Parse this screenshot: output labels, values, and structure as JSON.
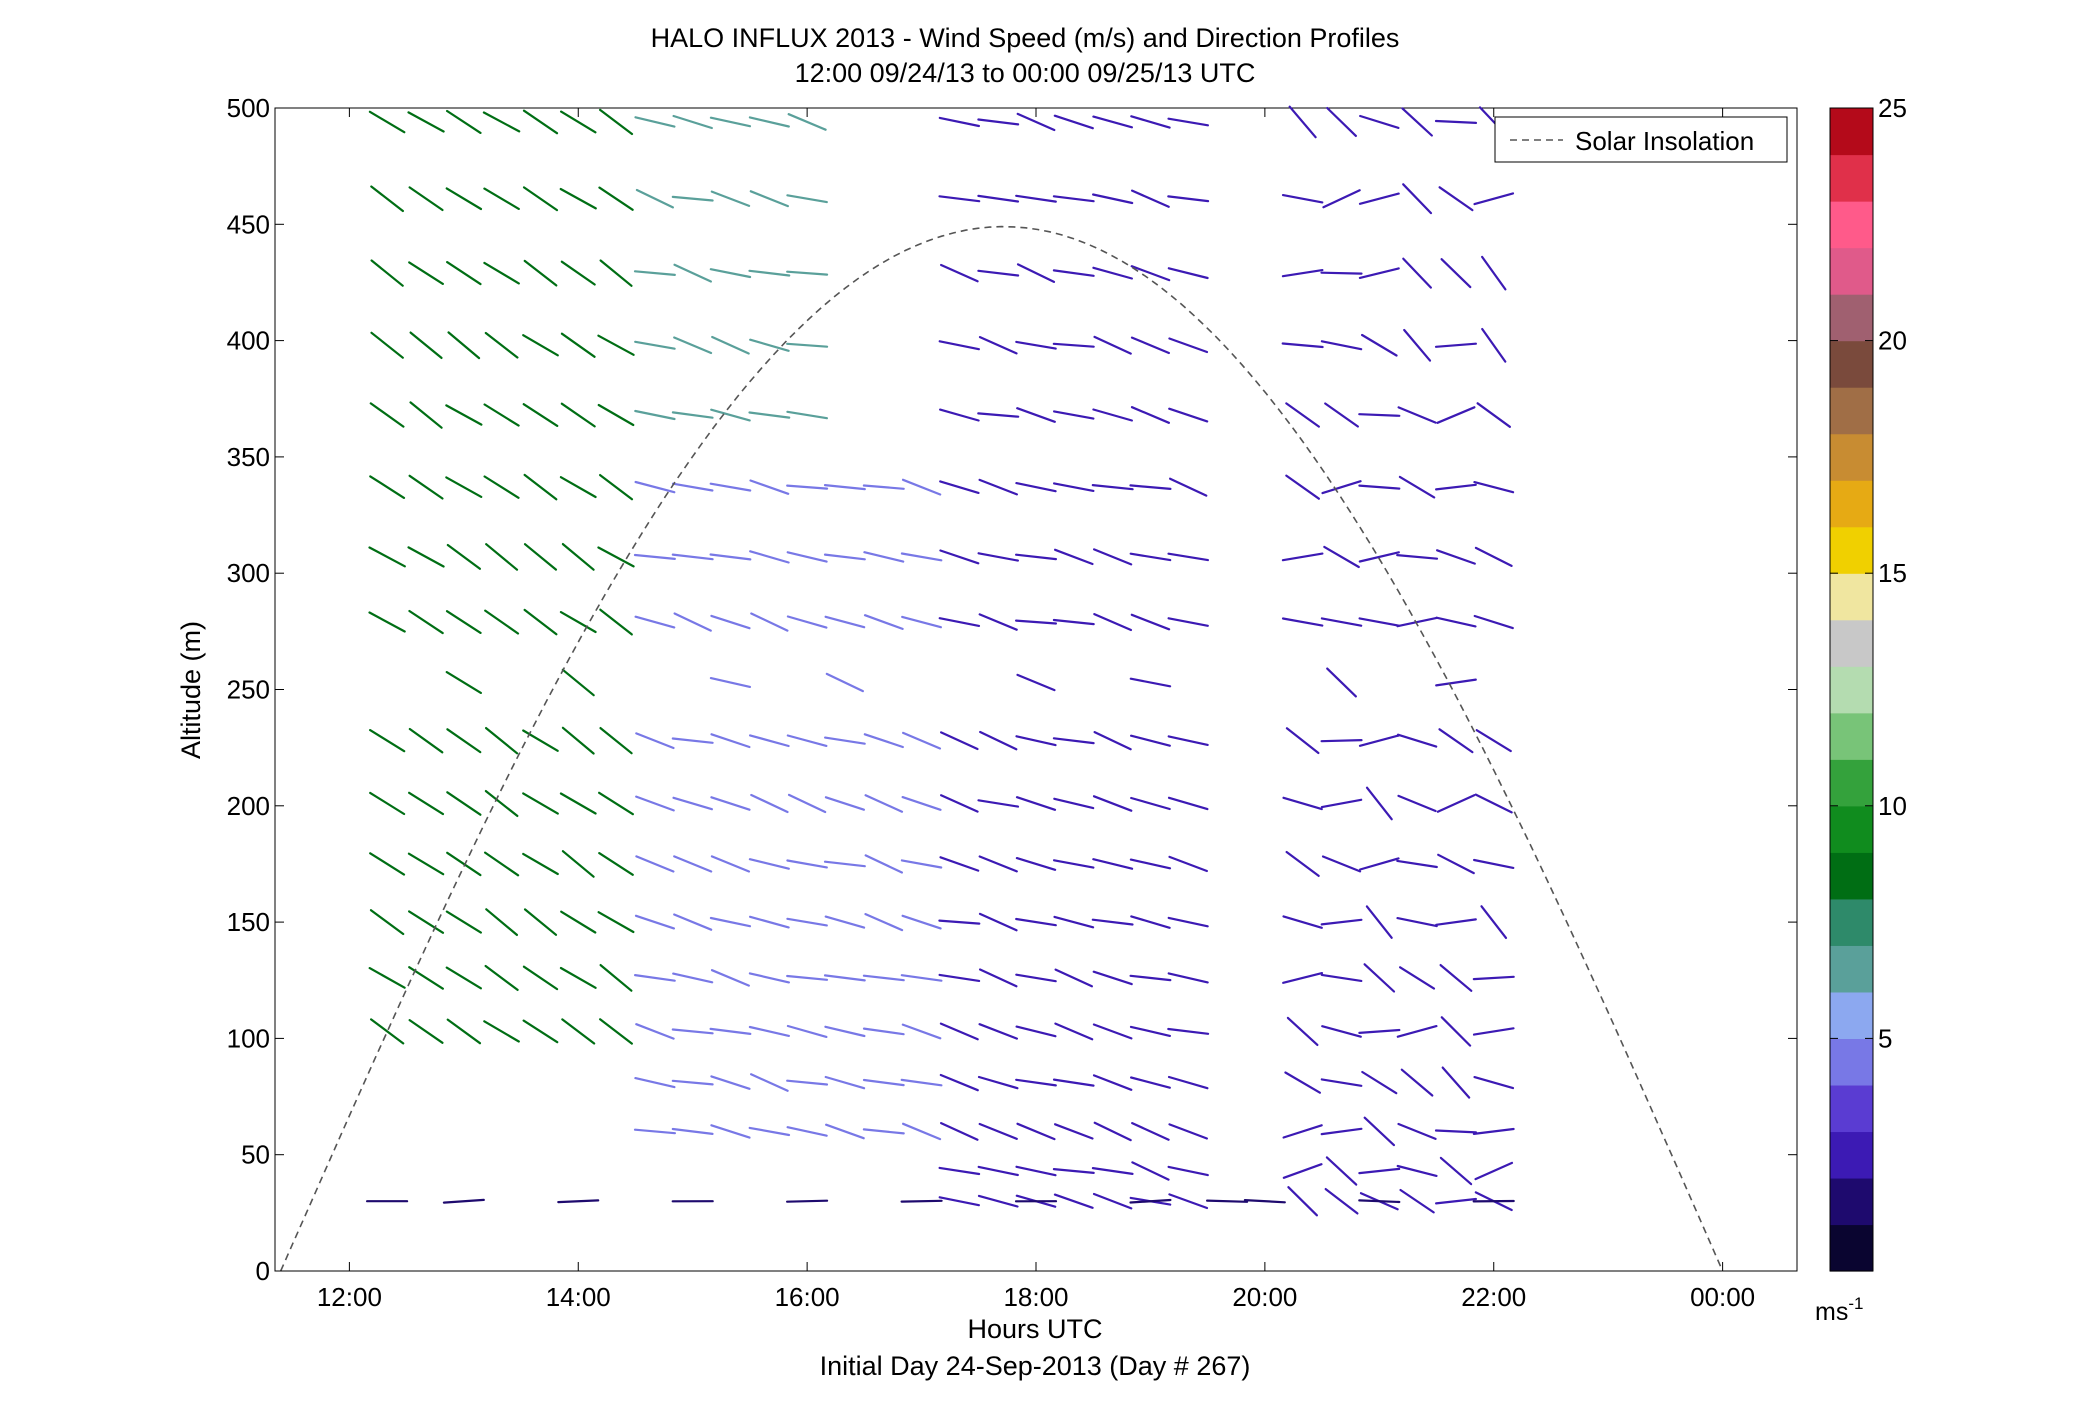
{
  "chart_data": {
    "type": "wind barb profile",
    "title": "HALO INFLUX 2013 - Wind Speed (m/s) and Direction Profiles",
    "subtitle": "12:00 09/24/13 to 00:00 09/25/13  UTC",
    "xlabel": "Hours UTC",
    "xlabel2": "Initial Day 24-Sep-2013 (Day # 267)",
    "ylabel": "Altitude (m)",
    "xlim": [
      11.35,
      24.65
    ],
    "ylim": [
      0,
      500
    ],
    "xticks": [
      12,
      14,
      16,
      18,
      20,
      22,
      24
    ],
    "xtick_labels": [
      "12:00",
      "14:00",
      "16:00",
      "18:00",
      "20:00",
      "22:00",
      "00:00"
    ],
    "yticks": [
      0,
      50,
      100,
      150,
      200,
      250,
      300,
      350,
      400,
      450,
      500
    ],
    "ytick_labels": [
      "0",
      "50",
      "100",
      "150",
      "200",
      "250",
      "300",
      "350",
      "400",
      "450",
      "500"
    ],
    "colorbar": {
      "range": [
        0,
        25
      ],
      "ticks": [
        5,
        10,
        15,
        20,
        25
      ],
      "tick_labels": [
        "5",
        "10",
        "15",
        "20",
        "25"
      ],
      "unit_label": "ms",
      "unit_exponent": "-1",
      "colors": [
        "#0a0530",
        "#1e0a6e",
        "#3c1ab4",
        "#5a3cd2",
        "#7878e6",
        "#8ca8f0",
        "#5aa09a",
        "#2e8a6a",
        "#006e14",
        "#108c1e",
        "#34a23c",
        "#78c478",
        "#b4dcb0",
        "#c8c8c8",
        "#f0e6a0",
        "#f0d000",
        "#e6aa14",
        "#c88c32",
        "#a06e46",
        "#7a4a3c",
        "#a06070",
        "#e05a8a",
        "#ff5a8a",
        "#e0304a",
        "#b40a1a"
      ]
    },
    "legend": {
      "position": "top-right",
      "entries": [
        "Solar Insolation"
      ]
    },
    "solar_insolation": {
      "type": "line",
      "style": "dashed",
      "color": "#555555",
      "start_hour": 11.4,
      "peak_hour": 17.72,
      "end_hour": 24.0,
      "peak_value": 449
    },
    "times": [
      12.33,
      12.67,
      13.0,
      13.33,
      13.67,
      14.0,
      14.33,
      14.67,
      15.0,
      15.33,
      15.67,
      16.0,
      16.33,
      16.67,
      17.0,
      17.33,
      17.67,
      18.0,
      18.33,
      18.67,
      19.0,
      19.33,
      19.67,
      20.0,
      20.33,
      20.67,
      21.0,
      21.33,
      21.67,
      22.0
    ],
    "altitudes": [
      30,
      43,
      60,
      81,
      103,
      126,
      150,
      175,
      201,
      228,
      253,
      279,
      307,
      337,
      368,
      398,
      429,
      461,
      494
    ],
    "speed_bands": [
      {
        "name": "green",
        "speed": 8.5,
        "hours": [
          12.33,
          12.67,
          13.0,
          13.33,
          13.67,
          14.0,
          14.33
        ],
        "min_alt": 100,
        "max_alt": 500
      },
      {
        "name": "teal",
        "speed": 6.0,
        "hours": [
          14.67,
          15.0,
          15.33,
          15.67,
          16.0
        ],
        "min_alt": 350,
        "max_alt": 500
      },
      {
        "name": "light blue",
        "speed": 4.8,
        "hours": [
          14.67,
          15.0,
          15.33,
          15.67,
          16.0,
          16.33,
          16.67,
          17.0
        ],
        "min_alt": 60,
        "max_alt": 350
      },
      {
        "name": "purple",
        "speed": 2.8,
        "hours": [
          17.33,
          17.67,
          18.0,
          18.33,
          18.67,
          19.0,
          19.33,
          20.33,
          20.67,
          21.0,
          21.33,
          21.67,
          22.0
        ],
        "min_alt": 0,
        "max_alt": 500
      },
      {
        "name": "dark",
        "speed": 1.2,
        "hours": [
          12.33,
          13.0,
          14.0,
          15.0,
          16.0,
          17.0,
          18.0,
          19.0,
          19.67,
          20.0,
          21.0,
          22.0
        ],
        "min_alt": 0,
        "max_alt": 35
      }
    ],
    "direction_note": "Line segments oriented by wind direction; mostly from the NW/W (downward-right tilt) at low speeds in the afternoon, steeper NW–SE tilt in the morning green band.",
    "missing_rows": [
      {
        "altitude": 253,
        "note": "mostly missing, only a few vectors"
      }
    ]
  }
}
